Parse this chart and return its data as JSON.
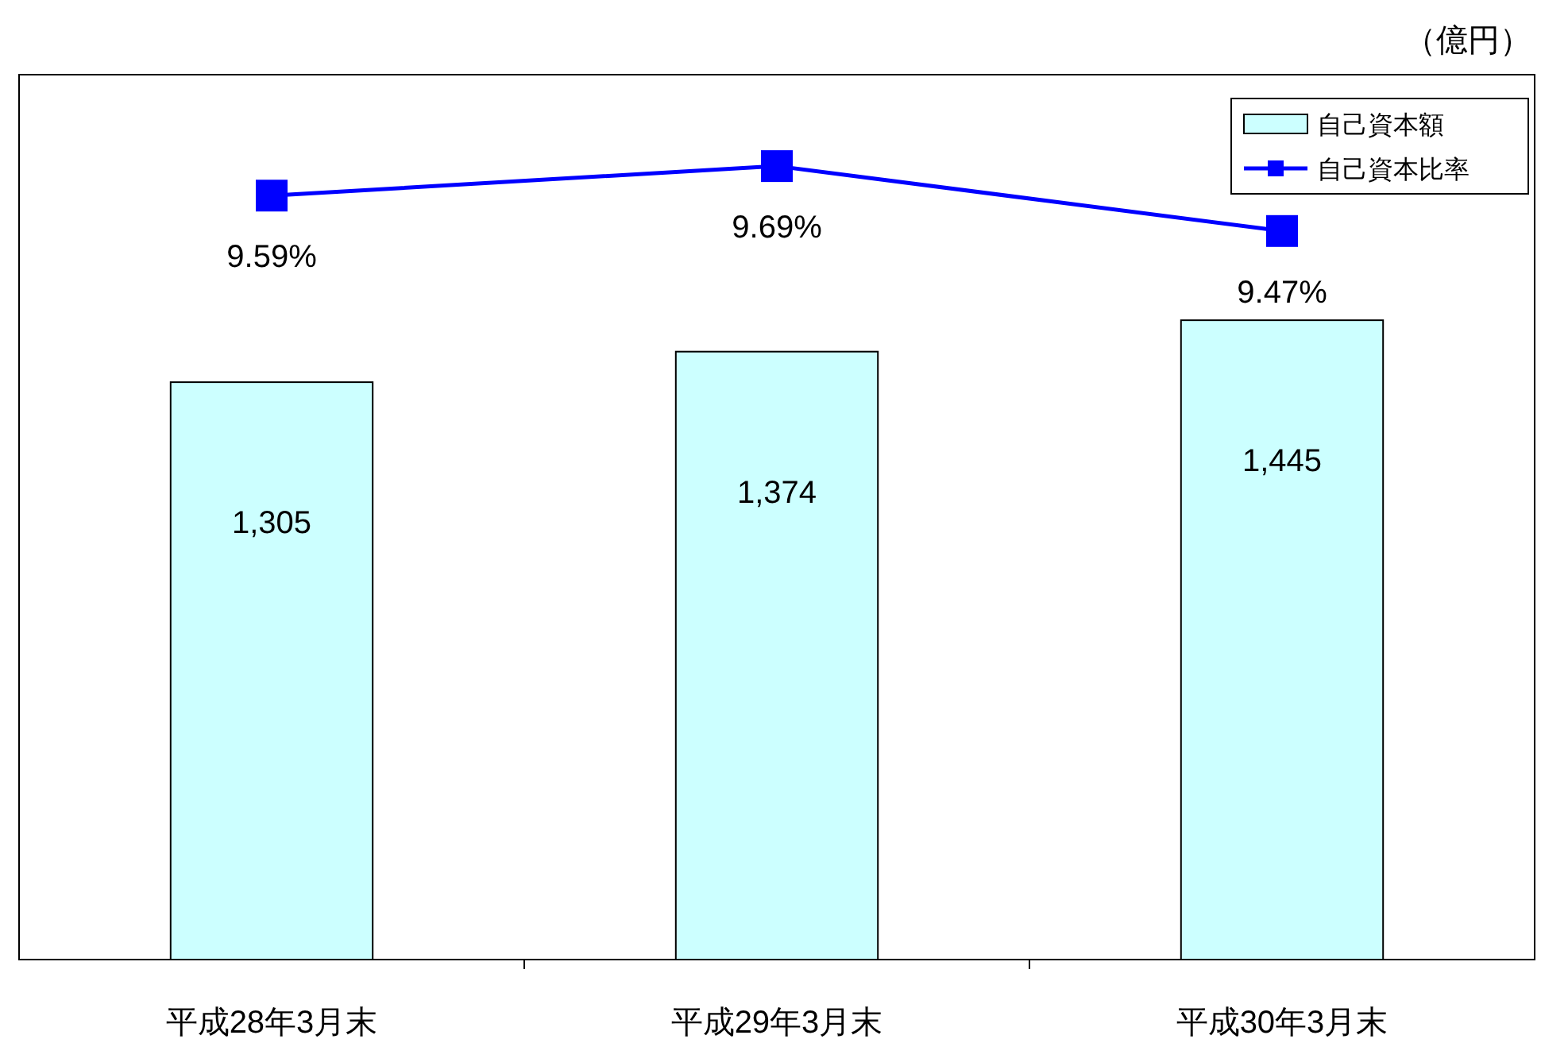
{
  "chart_data": {
    "type": "bar",
    "categories": [
      "平成28年3月末",
      "平成29年3月末",
      "平成30年3月末"
    ],
    "series": [
      {
        "name": "自己資本額",
        "color": "#ccffff",
        "values": [
          1305,
          1374,
          1445
        ],
        "value_labels": [
          "1,305",
          "1,374",
          "1,445"
        ]
      },
      {
        "name": "自己資本比率",
        "type": "line",
        "axis": "y2",
        "color": "#0000ff",
        "marker": "square",
        "values": [
          9.59,
          9.69,
          9.47
        ],
        "value_labels": [
          "9.59%",
          "9.69%",
          "9.47%"
        ]
      }
    ],
    "ylim": [
      0,
      2000
    ],
    "y2lim": [
      7,
      10
    ],
    "legend": "top right",
    "tick_labels": "x",
    "annotations": [
      "（億円）"
    ]
  }
}
